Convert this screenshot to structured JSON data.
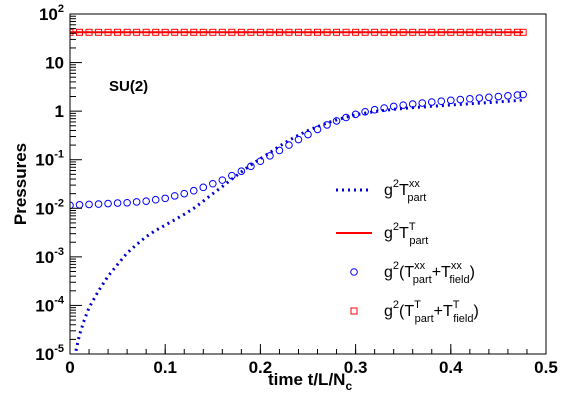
{
  "chart_data": {
    "type": "line",
    "title": "",
    "annotation": "SU(2)",
    "xlabel": {
      "main": "time t/L/N",
      "sub": "c"
    },
    "ylabel": "Pressures",
    "xlim": [
      0,
      0.5
    ],
    "ylim": [
      1e-05,
      100
    ],
    "yscale": "log",
    "grid": false,
    "legend_position": "bottom-right",
    "x_ticks": [
      {
        "v": 0,
        "label": "0"
      },
      {
        "v": 0.1,
        "label": "0.1"
      },
      {
        "v": 0.2,
        "label": "0.2"
      },
      {
        "v": 0.3,
        "label": "0.3"
      },
      {
        "v": 0.4,
        "label": "0.4"
      },
      {
        "v": 0.5,
        "label": "0.5"
      }
    ],
    "y_ticks": [
      {
        "v": 1e-05,
        "base": "10",
        "exp": "-5"
      },
      {
        "v": 0.0001,
        "base": "10",
        "exp": "-4"
      },
      {
        "v": 0.001,
        "base": "10",
        "exp": "-3"
      },
      {
        "v": 0.01,
        "base": "10",
        "exp": "-2"
      },
      {
        "v": 0.1,
        "base": "10",
        "exp": "-1"
      },
      {
        "v": 1,
        "base": "1",
        "exp": ""
      },
      {
        "v": 10,
        "base": "10",
        "exp": ""
      },
      {
        "v": 100,
        "base": "10",
        "exp": "2"
      }
    ],
    "series": [
      {
        "key": "Txx_part",
        "style": "dotted-line",
        "color": "#0000cc",
        "legend": [
          [
            "g",
            "n"
          ],
          [
            "2",
            "sup"
          ],
          [
            "T",
            "n"
          ],
          [
            "xx",
            "sup"
          ],
          [
            "part",
            "sub"
          ]
        ],
        "points": [
          [
            0.0036,
            5e-06
          ],
          [
            0.006,
            1.1e-05
          ],
          [
            0.01,
            2.5e-05
          ],
          [
            0.015,
            5e-05
          ],
          [
            0.02,
            9e-05
          ],
          [
            0.03,
            0.0002
          ],
          [
            0.04,
            0.0004
          ],
          [
            0.05,
            0.0007
          ],
          [
            0.06,
            0.0012
          ],
          [
            0.07,
            0.0018
          ],
          [
            0.08,
            0.0026
          ],
          [
            0.09,
            0.0035
          ],
          [
            0.1,
            0.0045
          ],
          [
            0.11,
            0.0058
          ],
          [
            0.12,
            0.0075
          ],
          [
            0.13,
            0.01
          ],
          [
            0.14,
            0.014
          ],
          [
            0.15,
            0.02
          ],
          [
            0.16,
            0.028
          ],
          [
            0.17,
            0.04
          ],
          [
            0.18,
            0.056
          ],
          [
            0.19,
            0.078
          ],
          [
            0.2,
            0.105
          ],
          [
            0.21,
            0.14
          ],
          [
            0.22,
            0.19
          ],
          [
            0.23,
            0.25
          ],
          [
            0.24,
            0.32
          ],
          [
            0.25,
            0.4
          ],
          [
            0.26,
            0.48
          ],
          [
            0.27,
            0.57
          ],
          [
            0.28,
            0.66
          ],
          [
            0.29,
            0.75
          ],
          [
            0.3,
            0.84
          ],
          [
            0.32,
            0.98
          ],
          [
            0.34,
            1.09
          ],
          [
            0.36,
            1.18
          ],
          [
            0.38,
            1.26
          ],
          [
            0.4,
            1.34
          ],
          [
            0.42,
            1.42
          ],
          [
            0.44,
            1.5
          ],
          [
            0.46,
            1.6
          ],
          [
            0.476,
            1.7
          ]
        ]
      },
      {
        "key": "TT_part",
        "style": "solid-line",
        "color": "#ff0000",
        "legend": [
          [
            "g",
            "n"
          ],
          [
            "2",
            "sup"
          ],
          [
            "T",
            "n"
          ],
          [
            "T",
            "sup"
          ],
          [
            "part",
            "sub"
          ]
        ],
        "points": [
          [
            0.0,
            42
          ],
          [
            0.476,
            42
          ]
        ]
      },
      {
        "key": "Txx_total",
        "style": "open-circle",
        "color": "#0000ff",
        "legend": [
          [
            "g",
            "n"
          ],
          [
            "2",
            "sup"
          ],
          [
            "(T",
            "n"
          ],
          [
            "xx",
            "sup"
          ],
          [
            "part",
            "sub"
          ],
          [
            "+T",
            "n"
          ],
          [
            "xx",
            "sup"
          ],
          [
            "field",
            "sub"
          ],
          [
            ")",
            "n"
          ]
        ],
        "points": [
          [
            0.0,
            0.0115
          ],
          [
            0.01,
            0.0118
          ],
          [
            0.02,
            0.012
          ],
          [
            0.03,
            0.0122
          ],
          [
            0.04,
            0.0125
          ],
          [
            0.05,
            0.0128
          ],
          [
            0.06,
            0.013
          ],
          [
            0.07,
            0.0135
          ],
          [
            0.08,
            0.014
          ],
          [
            0.09,
            0.015
          ],
          [
            0.1,
            0.016
          ],
          [
            0.11,
            0.018
          ],
          [
            0.12,
            0.02
          ],
          [
            0.13,
            0.023
          ],
          [
            0.14,
            0.027
          ],
          [
            0.15,
            0.032
          ],
          [
            0.16,
            0.038
          ],
          [
            0.17,
            0.047
          ],
          [
            0.18,
            0.058
          ],
          [
            0.19,
            0.073
          ],
          [
            0.2,
            0.093
          ],
          [
            0.21,
            0.12
          ],
          [
            0.22,
            0.155
          ],
          [
            0.23,
            0.2
          ],
          [
            0.24,
            0.26
          ],
          [
            0.25,
            0.33
          ],
          [
            0.26,
            0.42
          ],
          [
            0.27,
            0.52
          ],
          [
            0.28,
            0.63
          ],
          [
            0.29,
            0.74
          ],
          [
            0.3,
            0.86
          ],
          [
            0.31,
            0.97
          ],
          [
            0.32,
            1.07
          ],
          [
            0.33,
            1.16
          ],
          [
            0.34,
            1.25
          ],
          [
            0.35,
            1.33
          ],
          [
            0.36,
            1.4
          ],
          [
            0.37,
            1.47
          ],
          [
            0.38,
            1.54
          ],
          [
            0.39,
            1.6
          ],
          [
            0.4,
            1.67
          ],
          [
            0.41,
            1.73
          ],
          [
            0.42,
            1.8
          ],
          [
            0.43,
            1.86
          ],
          [
            0.44,
            1.93
          ],
          [
            0.45,
            2.0
          ],
          [
            0.46,
            2.07
          ],
          [
            0.47,
            2.15
          ],
          [
            0.476,
            2.2
          ]
        ]
      },
      {
        "key": "TT_total",
        "style": "open-square",
        "color": "#ff0000",
        "legend": [
          [
            "g",
            "n"
          ],
          [
            "2",
            "sup"
          ],
          [
            "(T",
            "n"
          ],
          [
            "T",
            "sup"
          ],
          [
            "part",
            "sub"
          ],
          [
            "+T",
            "n"
          ],
          [
            "T",
            "sup"
          ],
          [
            "field",
            "sub"
          ],
          [
            ")",
            "n"
          ]
        ],
        "points": [
          [
            0.0,
            42
          ],
          [
            0.01,
            42
          ],
          [
            0.02,
            42
          ],
          [
            0.03,
            42
          ],
          [
            0.04,
            42
          ],
          [
            0.05,
            42
          ],
          [
            0.06,
            42
          ],
          [
            0.07,
            42
          ],
          [
            0.08,
            42
          ],
          [
            0.09,
            42
          ],
          [
            0.1,
            42
          ],
          [
            0.11,
            42
          ],
          [
            0.12,
            42
          ],
          [
            0.13,
            42
          ],
          [
            0.14,
            42
          ],
          [
            0.15,
            42
          ],
          [
            0.16,
            42
          ],
          [
            0.17,
            42
          ],
          [
            0.18,
            42
          ],
          [
            0.19,
            42
          ],
          [
            0.2,
            42
          ],
          [
            0.21,
            42
          ],
          [
            0.22,
            42
          ],
          [
            0.23,
            42
          ],
          [
            0.24,
            42
          ],
          [
            0.25,
            42
          ],
          [
            0.26,
            42
          ],
          [
            0.27,
            42
          ],
          [
            0.28,
            42
          ],
          [
            0.29,
            42
          ],
          [
            0.3,
            42
          ],
          [
            0.31,
            42
          ],
          [
            0.32,
            42
          ],
          [
            0.33,
            42
          ],
          [
            0.34,
            42
          ],
          [
            0.35,
            42
          ],
          [
            0.36,
            42
          ],
          [
            0.37,
            42
          ],
          [
            0.38,
            42
          ],
          [
            0.39,
            42
          ],
          [
            0.4,
            42
          ],
          [
            0.41,
            42
          ],
          [
            0.42,
            42
          ],
          [
            0.43,
            42
          ],
          [
            0.44,
            42
          ],
          [
            0.45,
            42
          ],
          [
            0.46,
            42
          ],
          [
            0.47,
            42
          ],
          [
            0.476,
            42
          ]
        ]
      }
    ]
  }
}
